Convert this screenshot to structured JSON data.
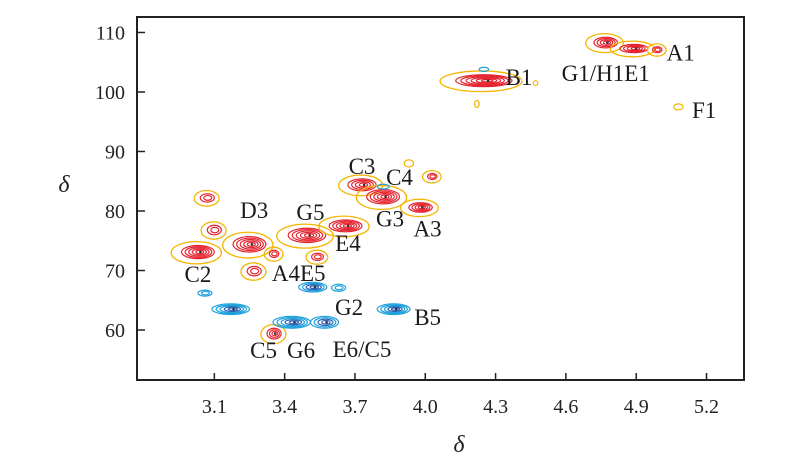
{
  "chart_data": {
    "type": "heatmap",
    "subtype": "2D HSQC NMR contour plot",
    "xlabel": "δ",
    "ylabel": "δ",
    "xlim": [
      2.77,
      5.36
    ],
    "ylim": [
      51.6,
      112.6
    ],
    "x_reversed": false,
    "grid": false,
    "x_ticks": [
      "3.1",
      "3.4",
      "3.7",
      "4.0",
      "4.3",
      "4.6",
      "4.9",
      "5.2"
    ],
    "y_ticks": [
      "60",
      "70",
      "80",
      "90",
      "100",
      "110"
    ],
    "colors": {
      "red": "#e52430",
      "yellow": "#f6b400",
      "blue": "#1ea2dc",
      "blue_inner": "#2d63b8",
      "axis": "#222222"
    },
    "peaks": [
      {
        "h": 3.03,
        "c": 73.1,
        "dh": 0.07,
        "dc": 1.1,
        "color": "red",
        "levels": 5
      },
      {
        "h": 3.1,
        "c": 76.8,
        "dh": 0.03,
        "dc": 0.8,
        "color": "red",
        "levels": 2
      },
      {
        "h": 3.07,
        "c": 82.2,
        "dh": 0.03,
        "dc": 0.7,
        "color": "red",
        "levels": 2
      },
      {
        "h": 3.25,
        "c": 74.4,
        "dh": 0.07,
        "dc": 1.3,
        "color": "red",
        "levels": 5
      },
      {
        "h": 3.355,
        "c": 72.8,
        "dh": 0.02,
        "dc": 0.6,
        "color": "red",
        "levels": 2
      },
      {
        "h": 3.27,
        "c": 69.9,
        "dh": 0.03,
        "dc": 0.8,
        "color": "red",
        "levels": 2
      },
      {
        "h": 3.495,
        "c": 75.9,
        "dh": 0.08,
        "dc": 1.2,
        "color": "red",
        "levels": 5
      },
      {
        "h": 3.66,
        "c": 77.5,
        "dh": 0.07,
        "dc": 1.0,
        "color": "red",
        "levels": 5
      },
      {
        "h": 3.73,
        "c": 84.4,
        "dh": 0.06,
        "dc": 1.0,
        "color": "red",
        "levels": 4
      },
      {
        "h": 3.82,
        "c": 82.4,
        "dh": 0.07,
        "dc": 1.2,
        "color": "red",
        "levels": 5
      },
      {
        "h": 3.98,
        "c": 80.6,
        "dh": 0.05,
        "dc": 0.8,
        "color": "red",
        "levels": 4
      },
      {
        "h": 4.03,
        "c": 85.8,
        "dh": 0.02,
        "dc": 0.5,
        "color": "red",
        "levels": 2
      },
      {
        "h": 3.54,
        "c": 72.3,
        "dh": 0.025,
        "dc": 0.6,
        "color": "red",
        "levels": 2
      },
      {
        "h": 3.355,
        "c": 59.4,
        "dh": 0.03,
        "dc": 0.9,
        "color": "red",
        "levels": 3
      },
      {
        "h": 4.25,
        "c": 101.9,
        "dh": 0.12,
        "dc": 1.0,
        "color": "red",
        "levels": 6
      },
      {
        "h": 4.77,
        "c": 108.3,
        "dh": 0.05,
        "dc": 0.9,
        "color": "red",
        "levels": 4
      },
      {
        "h": 4.89,
        "c": 107.3,
        "dh": 0.06,
        "dc": 0.7,
        "color": "red",
        "levels": 4
      },
      {
        "h": 4.99,
        "c": 107.1,
        "dh": 0.02,
        "dc": 0.5,
        "color": "red",
        "levels": 2
      },
      {
        "h": 5.08,
        "c": 97.5,
        "dh": 0.02,
        "dc": 0.5,
        "color": "yellow",
        "levels": 1
      },
      {
        "h": 4.22,
        "c": 98.0,
        "dh": 0.01,
        "dc": 0.6,
        "color": "yellow",
        "levels": 1
      },
      {
        "h": 3.93,
        "c": 88.0,
        "dh": 0.02,
        "dc": 0.6,
        "color": "yellow",
        "levels": 1
      },
      {
        "h": 4.47,
        "c": 101.5,
        "dh": 0.01,
        "dc": 0.4,
        "color": "yellow",
        "levels": 1
      },
      {
        "h": 3.06,
        "c": 66.2,
        "dh": 0.03,
        "dc": 0.5,
        "color": "blue",
        "levels": 2
      },
      {
        "h": 3.17,
        "c": 63.5,
        "dh": 0.08,
        "dc": 0.9,
        "color": "blue",
        "levels": 5
      },
      {
        "h": 3.43,
        "c": 61.3,
        "dh": 0.08,
        "dc": 1.0,
        "color": "blue",
        "levels": 5
      },
      {
        "h": 3.57,
        "c": 61.3,
        "dh": 0.06,
        "dc": 1.0,
        "color": "blue",
        "levels": 4
      },
      {
        "h": 3.52,
        "c": 67.2,
        "dh": 0.06,
        "dc": 0.8,
        "color": "blue",
        "levels": 4
      },
      {
        "h": 3.63,
        "c": 67.1,
        "dh": 0.03,
        "dc": 0.6,
        "color": "blue",
        "levels": 2
      },
      {
        "h": 3.865,
        "c": 63.5,
        "dh": 0.07,
        "dc": 0.9,
        "color": "blue",
        "levels": 5
      },
      {
        "h": 3.82,
        "c": 84.1,
        "dh": 0.025,
        "dc": 0.4,
        "color": "blue",
        "levels": 1
      },
      {
        "h": 4.25,
        "c": 103.8,
        "dh": 0.02,
        "dc": 0.35,
        "color": "blue",
        "levels": 1
      }
    ],
    "annotations": [
      {
        "text": "A1",
        "h": 5.09,
        "c": 106.6
      },
      {
        "text": "G1/H1E1",
        "h": 4.77,
        "c": 103.2
      },
      {
        "text": "B1",
        "h": 4.4,
        "c": 102.5
      },
      {
        "text": "F1",
        "h": 5.19,
        "c": 97.0
      },
      {
        "text": "C3",
        "h": 3.73,
        "c": 87.6
      },
      {
        "text": "C4",
        "h": 3.89,
        "c": 85.7
      },
      {
        "text": "G3",
        "h": 3.85,
        "c": 78.7
      },
      {
        "text": "A3",
        "h": 4.01,
        "c": 77.1
      },
      {
        "text": "D3",
        "h": 3.27,
        "c": 80.2
      },
      {
        "text": "G5",
        "h": 3.51,
        "c": 79.8
      },
      {
        "text": "E4",
        "h": 3.67,
        "c": 74.6
      },
      {
        "text": "C2",
        "h": 3.03,
        "c": 69.4
      },
      {
        "text": "A4E5",
        "h": 3.46,
        "c": 69.6
      },
      {
        "text": "G2",
        "h": 3.675,
        "c": 63.9
      },
      {
        "text": "B5",
        "h": 4.01,
        "c": 62.2
      },
      {
        "text": "C5",
        "h": 3.31,
        "c": 56.6
      },
      {
        "text": "G6",
        "h": 3.47,
        "c": 56.6
      },
      {
        "text": "E6/C5",
        "h": 3.73,
        "c": 56.8
      }
    ]
  }
}
